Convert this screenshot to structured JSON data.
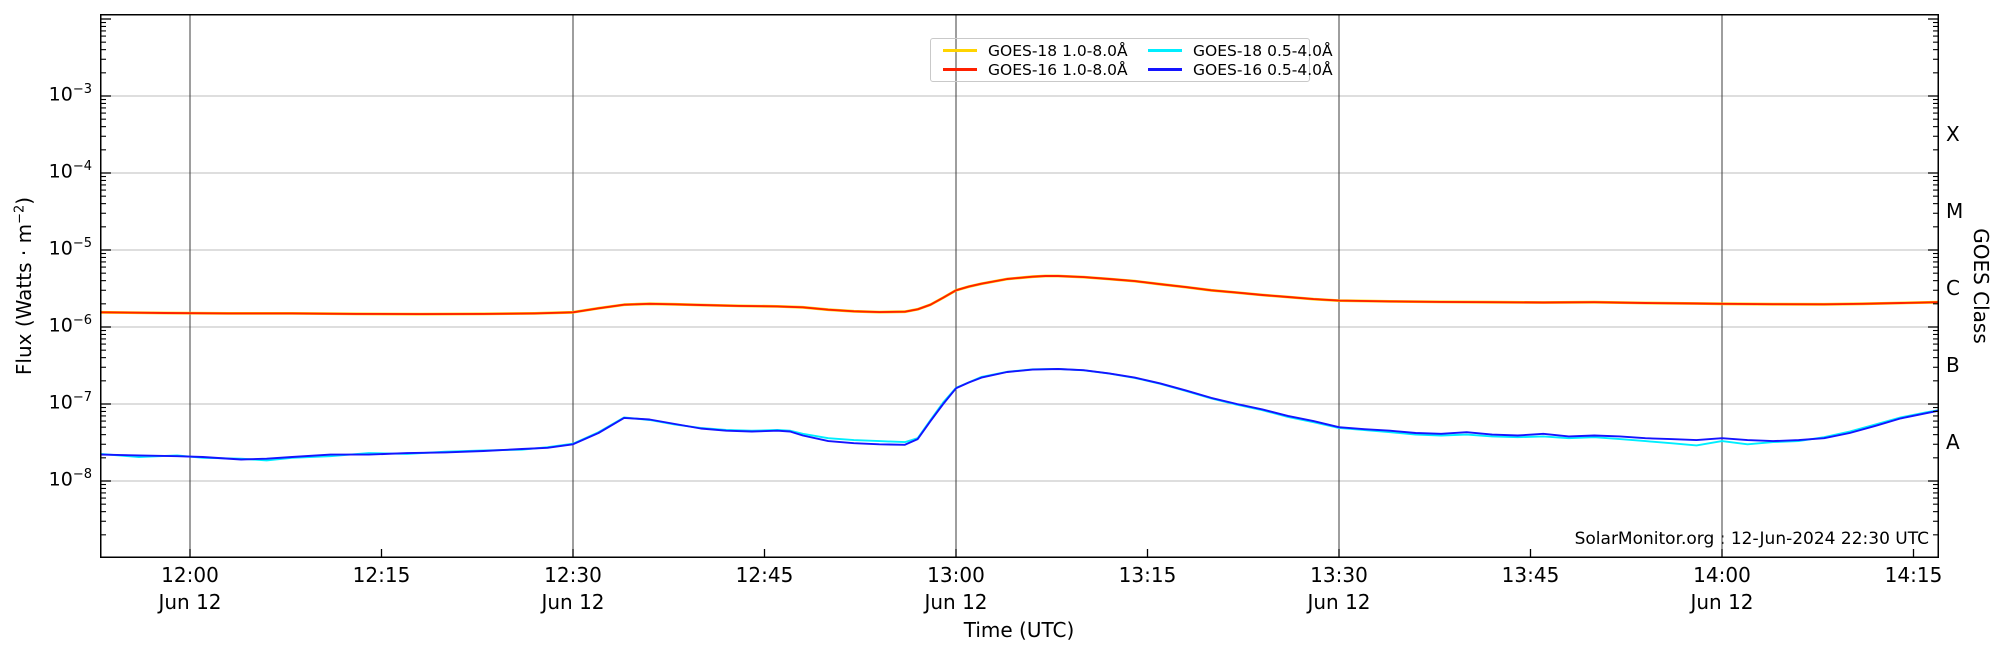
{
  "chart_data": {
    "type": "line",
    "source_caption": "SolarMonitor.org : 12-Jun-2024 22:30 UTC",
    "xlabel": "Time (UTC)",
    "ylabel_prefix": "Flux (Watts · m",
    "ylabel_sup": "−2",
    "ylabel_suffix": ")",
    "ylabel_right": "GOES Class",
    "x_axis": {
      "unit": "minutes_of_day",
      "left_edge": 713,
      "right_edge": 857,
      "grid": "vertical lines every 30 min"
    },
    "y_axis": {
      "scale": "log",
      "ylim": [
        1e-09,
        0.01
      ],
      "tick_label_exps": [
        -3,
        -4,
        -5,
        -6,
        -7,
        -8
      ],
      "grid": "horizontal lines at decades"
    },
    "x_ticks": [
      {
        "min": 720,
        "label": "12:00",
        "sub": "Jun 12",
        "grid": true
      },
      {
        "min": 735,
        "label": "12:15",
        "sub": "",
        "grid": false
      },
      {
        "min": 750,
        "label": "12:30",
        "sub": "Jun 12",
        "grid": true
      },
      {
        "min": 765,
        "label": "12:45",
        "sub": "",
        "grid": false
      },
      {
        "min": 780,
        "label": "13:00",
        "sub": "Jun 12",
        "grid": true
      },
      {
        "min": 795,
        "label": "13:15",
        "sub": "",
        "grid": false
      },
      {
        "min": 810,
        "label": "13:30",
        "sub": "Jun 12",
        "grid": true
      },
      {
        "min": 825,
        "label": "13:45",
        "sub": "",
        "grid": false
      },
      {
        "min": 840,
        "label": "14:00",
        "sub": "Jun 12",
        "grid": true
      },
      {
        "min": 855,
        "label": "14:15",
        "sub": "",
        "grid": false
      }
    ],
    "right_class_labels": [
      {
        "label": "X",
        "center_exp": -3.5
      },
      {
        "label": "M",
        "center_exp": -4.5
      },
      {
        "label": "C",
        "center_exp": -5.5
      },
      {
        "label": "B",
        "center_exp": -6.5
      },
      {
        "label": "A",
        "center_exp": -7.5
      }
    ],
    "colors": {
      "goes18_long": "#ffd400",
      "goes16_long": "#ff2000",
      "goes18_short": "#00eeff",
      "goes16_short": "#1414ff",
      "grid_v": "#3c3c3c",
      "grid_h": "#bcbcbc"
    },
    "legend": {
      "items": [
        {
          "label": "GOES-18 1.0-8.0Å",
          "color": "#ffd400"
        },
        {
          "label": "GOES-16 1.0-8.0Å",
          "color": "#ff2000"
        },
        {
          "label": "GOES-18 0.5-4.0Å",
          "color": "#00eeff"
        },
        {
          "label": "GOES-16 0.5-4.0Å",
          "color": "#1414ff"
        }
      ]
    },
    "series": [
      {
        "name": "GOES-18 1.0-8.0Å",
        "color": "#ffd400",
        "width": 2.8,
        "points": [
          [
            713,
            1.55e-06
          ],
          [
            718,
            1.52e-06
          ],
          [
            723,
            1.5e-06
          ],
          [
            728,
            1.5e-06
          ],
          [
            733,
            1.48e-06
          ],
          [
            738,
            1.47e-06
          ],
          [
            743,
            1.48e-06
          ],
          [
            747,
            1.5e-06
          ],
          [
            750,
            1.55e-06
          ],
          [
            752,
            1.75e-06
          ],
          [
            754,
            1.95e-06
          ],
          [
            756,
            2e-06
          ],
          [
            758,
            1.97e-06
          ],
          [
            760,
            1.93e-06
          ],
          [
            763,
            1.88e-06
          ],
          [
            766,
            1.85e-06
          ],
          [
            768,
            1.8e-06
          ],
          [
            770,
            1.68e-06
          ],
          [
            772,
            1.6e-06
          ],
          [
            774,
            1.56e-06
          ],
          [
            776,
            1.58e-06
          ],
          [
            777,
            1.7e-06
          ],
          [
            778,
            1.95e-06
          ],
          [
            779,
            2.4e-06
          ],
          [
            780,
            3e-06
          ],
          [
            781,
            3.35e-06
          ],
          [
            782,
            3.65e-06
          ],
          [
            784,
            4.2e-06
          ],
          [
            786,
            4.5e-06
          ],
          [
            787,
            4.6e-06
          ],
          [
            788,
            4.6e-06
          ],
          [
            790,
            4.45e-06
          ],
          [
            792,
            4.2e-06
          ],
          [
            794,
            3.95e-06
          ],
          [
            796,
            3.6e-06
          ],
          [
            798,
            3.3e-06
          ],
          [
            800,
            3e-06
          ],
          [
            802,
            2.8e-06
          ],
          [
            804,
            2.6e-06
          ],
          [
            806,
            2.45e-06
          ],
          [
            808,
            2.3e-06
          ],
          [
            810,
            2.2e-06
          ],
          [
            814,
            2.15e-06
          ],
          [
            818,
            2.12e-06
          ],
          [
            822,
            2.1e-06
          ],
          [
            826,
            2.08e-06
          ],
          [
            830,
            2.1e-06
          ],
          [
            834,
            2.05e-06
          ],
          [
            838,
            2.02e-06
          ],
          [
            840,
            2e-06
          ],
          [
            844,
            1.98e-06
          ],
          [
            848,
            1.97e-06
          ],
          [
            851,
            2e-06
          ],
          [
            854,
            2.05e-06
          ],
          [
            857,
            2.1e-06
          ]
        ]
      },
      {
        "name": "GOES-16 1.0-8.0Å",
        "color": "#ff2000",
        "width": 1.9,
        "points": [
          [
            713,
            1.55e-06
          ],
          [
            718,
            1.52e-06
          ],
          [
            723,
            1.5e-06
          ],
          [
            728,
            1.5e-06
          ],
          [
            733,
            1.48e-06
          ],
          [
            738,
            1.47e-06
          ],
          [
            743,
            1.48e-06
          ],
          [
            747,
            1.5e-06
          ],
          [
            750,
            1.55e-06
          ],
          [
            752,
            1.75e-06
          ],
          [
            754,
            1.95e-06
          ],
          [
            756,
            2e-06
          ],
          [
            758,
            1.97e-06
          ],
          [
            760,
            1.93e-06
          ],
          [
            763,
            1.88e-06
          ],
          [
            766,
            1.85e-06
          ],
          [
            768,
            1.8e-06
          ],
          [
            770,
            1.68e-06
          ],
          [
            772,
            1.6e-06
          ],
          [
            774,
            1.56e-06
          ],
          [
            776,
            1.58e-06
          ],
          [
            777,
            1.7e-06
          ],
          [
            778,
            1.95e-06
          ],
          [
            779,
            2.4e-06
          ],
          [
            780,
            3e-06
          ],
          [
            781,
            3.35e-06
          ],
          [
            782,
            3.65e-06
          ],
          [
            784,
            4.2e-06
          ],
          [
            786,
            4.5e-06
          ],
          [
            787,
            4.6e-06
          ],
          [
            788,
            4.6e-06
          ],
          [
            790,
            4.45e-06
          ],
          [
            792,
            4.2e-06
          ],
          [
            794,
            3.95e-06
          ],
          [
            796,
            3.6e-06
          ],
          [
            798,
            3.3e-06
          ],
          [
            800,
            3e-06
          ],
          [
            802,
            2.8e-06
          ],
          [
            804,
            2.6e-06
          ],
          [
            806,
            2.45e-06
          ],
          [
            808,
            2.3e-06
          ],
          [
            810,
            2.2e-06
          ],
          [
            814,
            2.15e-06
          ],
          [
            818,
            2.12e-06
          ],
          [
            822,
            2.1e-06
          ],
          [
            826,
            2.08e-06
          ],
          [
            830,
            2.1e-06
          ],
          [
            834,
            2.05e-06
          ],
          [
            838,
            2.02e-06
          ],
          [
            840,
            2e-06
          ],
          [
            844,
            1.98e-06
          ],
          [
            848,
            1.97e-06
          ],
          [
            851,
            2e-06
          ],
          [
            854,
            2.05e-06
          ],
          [
            857,
            2.1e-06
          ]
        ]
      },
      {
        "name": "GOES-18 0.5-4.0Å",
        "color": "#00eeff",
        "width": 1.9,
        "points": [
          [
            713,
            2.25e-08
          ],
          [
            716,
            2.05e-08
          ],
          [
            719,
            2.15e-08
          ],
          [
            721,
            2e-08
          ],
          [
            724,
            1.95e-08
          ],
          [
            726,
            1.85e-08
          ],
          [
            728,
            2e-08
          ],
          [
            731,
            2.1e-08
          ],
          [
            734,
            2.3e-08
          ],
          [
            737,
            2.25e-08
          ],
          [
            740,
            2.4e-08
          ],
          [
            743,
            2.5e-08
          ],
          [
            746,
            2.55e-08
          ],
          [
            748,
            2.75e-08
          ],
          [
            750,
            3.05e-08
          ],
          [
            752,
            4.3e-08
          ],
          [
            754,
            6.7e-08
          ],
          [
            756,
            6.2e-08
          ],
          [
            758,
            5.4e-08
          ],
          [
            760,
            4.9e-08
          ],
          [
            762,
            4.6e-08
          ],
          [
            764,
            4.5e-08
          ],
          [
            766,
            4.6e-08
          ],
          [
            767,
            4.5e-08
          ],
          [
            768,
            4.1e-08
          ],
          [
            770,
            3.6e-08
          ],
          [
            772,
            3.4e-08
          ],
          [
            774,
            3.3e-08
          ],
          [
            776,
            3.2e-08
          ],
          [
            777,
            3.6e-08
          ],
          [
            778,
            6.2e-08
          ],
          [
            779,
            1.05e-07
          ],
          [
            780,
            1.62e-07
          ],
          [
            782,
            2.25e-07
          ],
          [
            784,
            2.62e-07
          ],
          [
            786,
            2.82e-07
          ],
          [
            788,
            2.86e-07
          ],
          [
            790,
            2.74e-07
          ],
          [
            792,
            2.48e-07
          ],
          [
            794,
            2.18e-07
          ],
          [
            796,
            1.83e-07
          ],
          [
            798,
            1.48e-07
          ],
          [
            800,
            1.18e-07
          ],
          [
            802,
            9.8e-08
          ],
          [
            804,
            8.3e-08
          ],
          [
            806,
            6.8e-08
          ],
          [
            808,
            5.8e-08
          ],
          [
            810,
            4.9e-08
          ],
          [
            812,
            4.6e-08
          ],
          [
            814,
            4.3e-08
          ],
          [
            816,
            4e-08
          ],
          [
            818,
            3.9e-08
          ],
          [
            820,
            4e-08
          ],
          [
            822,
            3.8e-08
          ],
          [
            824,
            3.7e-08
          ],
          [
            826,
            3.8e-08
          ],
          [
            828,
            3.6e-08
          ],
          [
            830,
            3.7e-08
          ],
          [
            832,
            3.5e-08
          ],
          [
            834,
            3.3e-08
          ],
          [
            836,
            3.1e-08
          ],
          [
            838,
            2.9e-08
          ],
          [
            840,
            3.3e-08
          ],
          [
            842,
            3e-08
          ],
          [
            844,
            3.2e-08
          ],
          [
            846,
            3.3e-08
          ],
          [
            848,
            3.7e-08
          ],
          [
            850,
            4.4e-08
          ],
          [
            852,
            5.4e-08
          ],
          [
            854,
            6.7e-08
          ],
          [
            856,
            7.8e-08
          ],
          [
            857,
            8.3e-08
          ]
        ]
      },
      {
        "name": "GOES-16 0.5-4.0Å",
        "color": "#1414ff",
        "width": 1.9,
        "points": [
          [
            713,
            2.2e-08
          ],
          [
            716,
            2.15e-08
          ],
          [
            719,
            2.1e-08
          ],
          [
            721,
            2.05e-08
          ],
          [
            724,
            1.9e-08
          ],
          [
            726,
            1.95e-08
          ],
          [
            728,
            2.05e-08
          ],
          [
            731,
            2.2e-08
          ],
          [
            734,
            2.2e-08
          ],
          [
            737,
            2.3e-08
          ],
          [
            740,
            2.35e-08
          ],
          [
            743,
            2.45e-08
          ],
          [
            746,
            2.6e-08
          ],
          [
            748,
            2.7e-08
          ],
          [
            750,
            3e-08
          ],
          [
            752,
            4.2e-08
          ],
          [
            754,
            6.6e-08
          ],
          [
            756,
            6.3e-08
          ],
          [
            758,
            5.5e-08
          ],
          [
            760,
            4.8e-08
          ],
          [
            762,
            4.5e-08
          ],
          [
            764,
            4.4e-08
          ],
          [
            766,
            4.5e-08
          ],
          [
            767,
            4.4e-08
          ],
          [
            768,
            3.9e-08
          ],
          [
            770,
            3.3e-08
          ],
          [
            772,
            3.1e-08
          ],
          [
            774,
            3e-08
          ],
          [
            776,
            2.95e-08
          ],
          [
            777,
            3.5e-08
          ],
          [
            778,
            6e-08
          ],
          [
            779,
            1e-07
          ],
          [
            780,
            1.6e-07
          ],
          [
            781,
            1.9e-07
          ],
          [
            782,
            2.2e-07
          ],
          [
            784,
            2.6e-07
          ],
          [
            786,
            2.8e-07
          ],
          [
            788,
            2.85e-07
          ],
          [
            790,
            2.75e-07
          ],
          [
            792,
            2.5e-07
          ],
          [
            794,
            2.2e-07
          ],
          [
            796,
            1.85e-07
          ],
          [
            798,
            1.5e-07
          ],
          [
            800,
            1.2e-07
          ],
          [
            802,
            1e-07
          ],
          [
            804,
            8.5e-08
          ],
          [
            806,
            7e-08
          ],
          [
            808,
            6e-08
          ],
          [
            810,
            5e-08
          ],
          [
            812,
            4.7e-08
          ],
          [
            814,
            4.5e-08
          ],
          [
            816,
            4.2e-08
          ],
          [
            818,
            4.1e-08
          ],
          [
            820,
            4.3e-08
          ],
          [
            822,
            4e-08
          ],
          [
            824,
            3.9e-08
          ],
          [
            826,
            4.1e-08
          ],
          [
            828,
            3.8e-08
          ],
          [
            830,
            3.9e-08
          ],
          [
            832,
            3.8e-08
          ],
          [
            834,
            3.6e-08
          ],
          [
            836,
            3.5e-08
          ],
          [
            838,
            3.4e-08
          ],
          [
            840,
            3.6e-08
          ],
          [
            842,
            3.4e-08
          ],
          [
            844,
            3.3e-08
          ],
          [
            846,
            3.4e-08
          ],
          [
            848,
            3.6e-08
          ],
          [
            850,
            4.2e-08
          ],
          [
            852,
            5.2e-08
          ],
          [
            854,
            6.5e-08
          ],
          [
            856,
            7.6e-08
          ],
          [
            857,
            8.2e-08
          ]
        ]
      }
    ]
  }
}
